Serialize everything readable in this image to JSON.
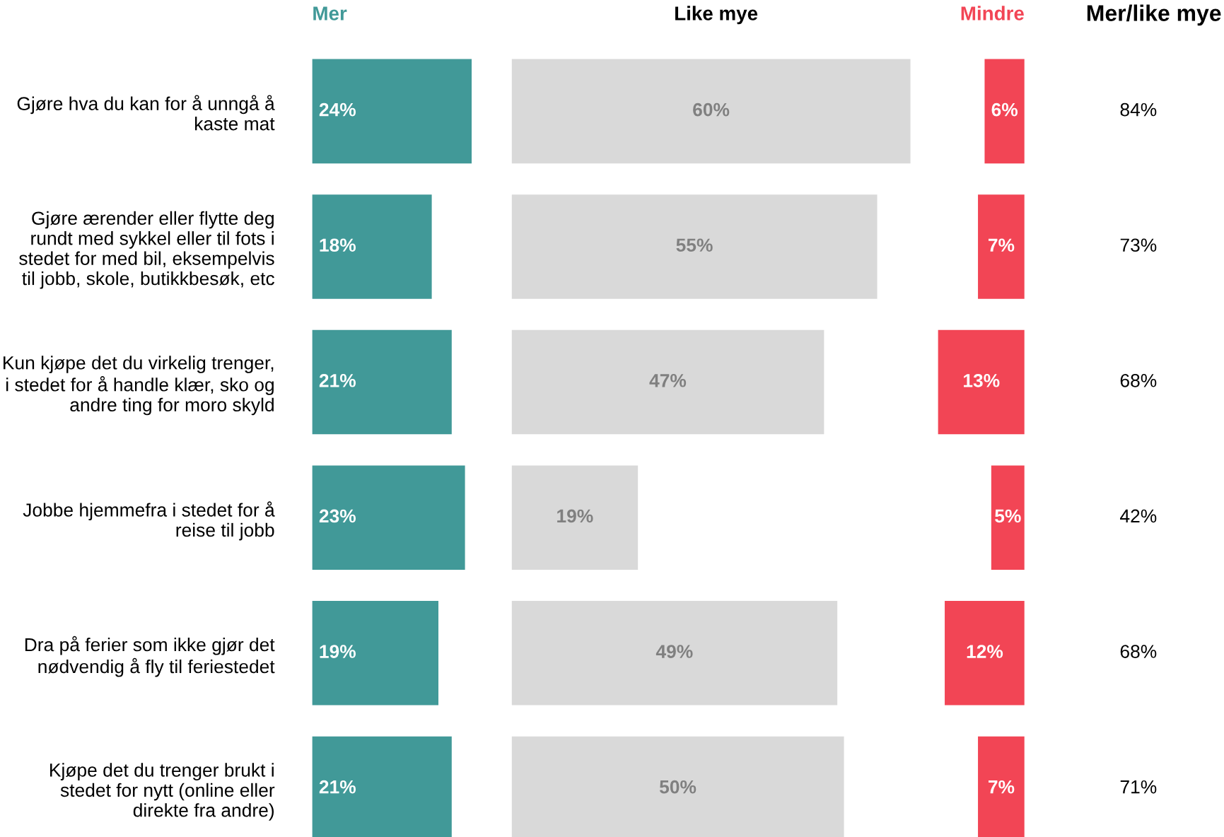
{
  "chart_data": [
    {
      "type": "bar",
      "orientation": "horizontal",
      "title": "Mer",
      "categories": [
        "Gjøre hva du kan for å unngå å kaste mat",
        "Gjøre ærender eller flytte deg rundt med sykkel eller til fots i stedet for med bil, eksempelvis til jobb, skole, butikkbesøk, etc",
        "Kun kjøpe det du virkelig trenger, i stedet for å handle klær, sko og andre ting for moro skyld",
        "Jobbe hjemmefra i stedet for å reise til jobb",
        "Dra på ferier som ikke gjør det nødvendig å fly til feriestedet",
        "Kjøpe det du trenger brukt i stedet for nytt (online eller direkte fra andre)"
      ],
      "values": [
        24,
        18,
        21,
        23,
        19,
        21
      ],
      "color": "#419998",
      "value_labels": [
        "24%",
        "18%",
        "21%",
        "23%",
        "19%",
        "21%"
      ],
      "tick_labels": "y"
    },
    {
      "type": "bar",
      "orientation": "horizontal",
      "title": "Like mye",
      "categories": [
        null,
        null,
        null,
        null,
        null,
        null
      ],
      "values": [
        60,
        55,
        47,
        19,
        49,
        50
      ],
      "color": "#d9d9d9",
      "value_labels": [
        "60%",
        "55%",
        "47%",
        "19%",
        "49%",
        "50%"
      ],
      "tick_labels": false
    },
    {
      "type": "bar",
      "orientation": "horizontal",
      "title": "Mindre",
      "categories": [
        null,
        null,
        null,
        null,
        null,
        null
      ],
      "values": [
        6,
        7,
        13,
        5,
        12,
        7
      ],
      "color": "#f24555",
      "value_labels": [
        "6%",
        "7%",
        "13%",
        "5%",
        "12%",
        "7%"
      ],
      "tick_labels": false
    },
    {
      "type": "other",
      "title": "Mer/like mye",
      "annotations": [
        "84%",
        "73%",
        "68%",
        "42%",
        "68%",
        "71%"
      ]
    }
  ]
}
